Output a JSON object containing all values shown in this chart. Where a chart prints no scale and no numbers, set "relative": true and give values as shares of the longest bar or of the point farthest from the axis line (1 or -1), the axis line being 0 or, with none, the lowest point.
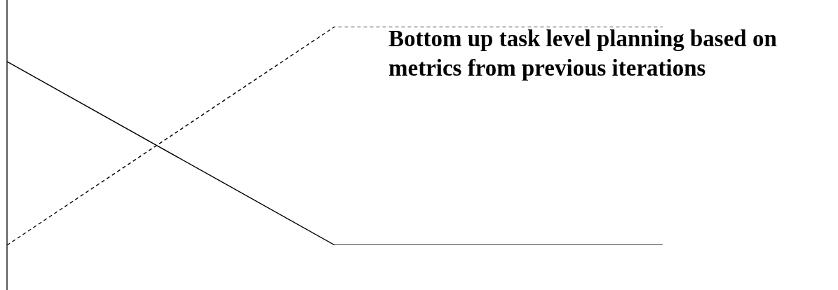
{
  "chart_data": {
    "type": "line",
    "relative": true,
    "categories": [
      null,
      null,
      null
    ],
    "series": [
      {
        "color": "#000000",
        "values": [
          0.84,
          0,
          0
        ],
        "line_style": "solid"
      },
      {
        "color": "#000000",
        "values": [
          0,
          1,
          1
        ],
        "line_style": "dashed"
      }
    ],
    "annotations": [
      "Bottom up task level planning based on metrics from previous iterations"
    ],
    "legend": false,
    "marker": "none"
  }
}
